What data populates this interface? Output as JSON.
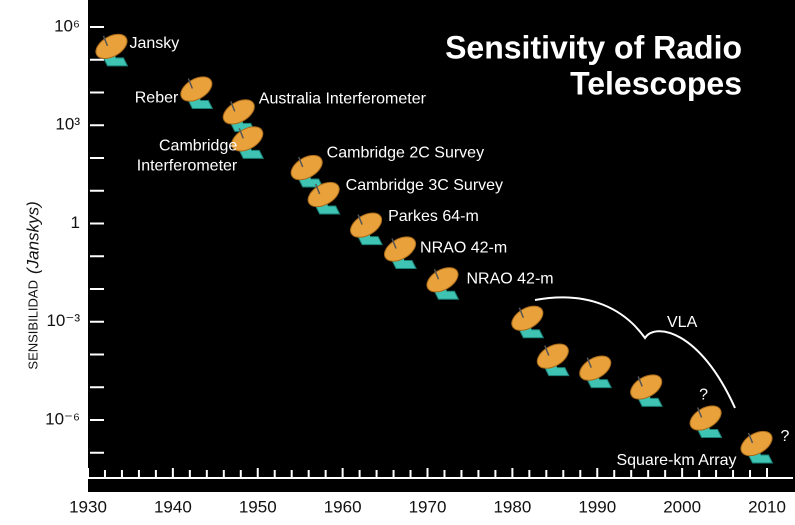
{
  "chart_data": {
    "type": "scatter",
    "title": [
      "Sensitivity of Radio",
      "Telescopes"
    ],
    "ylabel": "SENSIBILIDAD",
    "ylabel_unit": "(Janskys)",
    "log_y": true,
    "xlim": [
      1930,
      2012
    ],
    "xticks": [
      1930,
      1940,
      1950,
      1960,
      1970,
      1980,
      1990,
      2000,
      2010
    ],
    "minor_xticks": [
      1932,
      1934,
      1936,
      1938,
      1942,
      1944,
      1946,
      1948,
      1952,
      1954,
      1956,
      1958,
      1962,
      1964,
      1966,
      1968,
      1972,
      1974,
      1976,
      1978,
      1982,
      1984,
      1986,
      1988,
      1992,
      1994,
      1996,
      1998,
      2002,
      2004,
      2006,
      2008
    ],
    "ylim": [
      1e-07,
      1000000.0
    ],
    "yticks": [
      {
        "value": 1000000,
        "label": "10⁶"
      },
      {
        "value": 1000,
        "label": "10³"
      },
      1,
      {
        "value": 0.001,
        "label": "10⁻³"
      },
      {
        "value": 1e-06,
        "label": "10⁻⁶"
      }
    ],
    "minor_yticks": [
      100000,
      10000,
      100,
      10,
      0.1,
      0.01,
      0.0001,
      1e-05,
      1e-07
    ],
    "dish_color": "#e9a23b",
    "base_color": "#3fc4b4",
    "x": [
      1933,
      1943,
      1948,
      1949,
      1956,
      1958,
      1963,
      1967,
      1972,
      1982,
      1985,
      1990,
      1996,
      2003,
      2009
    ],
    "values": [
      200000,
      10000,
      2000,
      300,
      40,
      6,
      0.7,
      0.13,
      0.015,
      0.001,
      7e-05,
      3e-05,
      8e-06,
      9e-07,
      1.5e-07
    ],
    "labels": [
      "Jansky",
      "Reber",
      "Australia Interferometer",
      [
        "Cambridge",
        "Interferometer"
      ],
      "Cambridge 2C Survey",
      "Cambridge 3C Survey",
      "Parkes 64-m",
      "NRAO 42-m",
      "NRAO 42-m",
      null,
      null,
      null,
      null,
      "?",
      [
        "?",
        "Square-km Array"
      ]
    ],
    "annotation": "VLA"
  }
}
